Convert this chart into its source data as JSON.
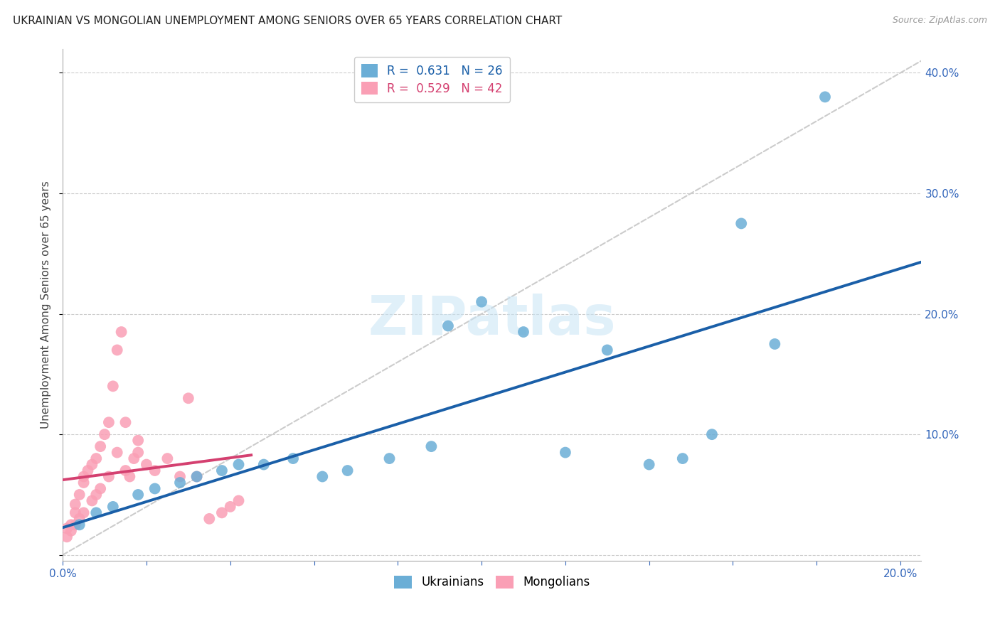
{
  "title": "UKRAINIAN VS MONGOLIAN UNEMPLOYMENT AMONG SENIORS OVER 65 YEARS CORRELATION CHART",
  "source": "Source: ZipAtlas.com",
  "ylabel": "Unemployment Among Seniors over 65 years",
  "xlim": [
    0.0,
    0.205
  ],
  "ylim": [
    -0.005,
    0.42
  ],
  "ukr_color": "#6baed6",
  "mng_color": "#fa9fb5",
  "ukr_line_color": "#1a5fa8",
  "mng_line_color": "#d44070",
  "diagonal_color": "#cccccc",
  "watermark": "ZIPatlas",
  "background_color": "#ffffff",
  "grid_color": "#cccccc",
  "ukr_x": [
    0.004,
    0.008,
    0.012,
    0.018,
    0.022,
    0.028,
    0.032,
    0.038,
    0.042,
    0.048,
    0.055,
    0.062,
    0.068,
    0.078,
    0.088,
    0.092,
    0.1,
    0.11,
    0.12,
    0.13,
    0.14,
    0.148,
    0.155,
    0.162,
    0.17,
    0.182
  ],
  "ukr_y": [
    0.025,
    0.035,
    0.04,
    0.05,
    0.055,
    0.06,
    0.065,
    0.07,
    0.075,
    0.075,
    0.08,
    0.065,
    0.07,
    0.08,
    0.09,
    0.19,
    0.21,
    0.185,
    0.085,
    0.17,
    0.075,
    0.08,
    0.1,
    0.275,
    0.175,
    0.38
  ],
  "mng_x": [
    0.001,
    0.002,
    0.003,
    0.003,
    0.004,
    0.005,
    0.005,
    0.006,
    0.007,
    0.008,
    0.009,
    0.01,
    0.011,
    0.012,
    0.013,
    0.014,
    0.015,
    0.016,
    0.017,
    0.018,
    0.02,
    0.022,
    0.025,
    0.028,
    0.03,
    0.032,
    0.035,
    0.038,
    0.04,
    0.042,
    0.001,
    0.002,
    0.003,
    0.004,
    0.005,
    0.007,
    0.008,
    0.009,
    0.011,
    0.013,
    0.015,
    0.018
  ],
  "mng_y": [
    0.022,
    0.025,
    0.035,
    0.042,
    0.05,
    0.06,
    0.065,
    0.07,
    0.075,
    0.08,
    0.09,
    0.1,
    0.11,
    0.14,
    0.17,
    0.185,
    0.11,
    0.065,
    0.08,
    0.085,
    0.075,
    0.07,
    0.08,
    0.065,
    0.13,
    0.065,
    0.03,
    0.035,
    0.04,
    0.045,
    0.015,
    0.02,
    0.025,
    0.03,
    0.035,
    0.045,
    0.05,
    0.055,
    0.065,
    0.085,
    0.07,
    0.095
  ]
}
